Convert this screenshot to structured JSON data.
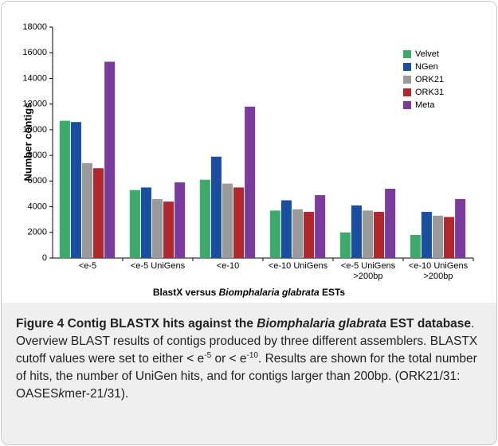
{
  "chart_data": {
    "type": "bar",
    "y_label": "Number contigs",
    "x_label": [
      {
        "text": "BlastX versus ",
        "style": "bold"
      },
      {
        "text": "Biomphalaria glabrata",
        "style": "bold-italic"
      },
      {
        "text": " ESTs",
        "style": "bold"
      }
    ],
    "categories": [
      "<e-5",
      "<e-5 UniGens",
      "<e-10",
      "<e-10 UniGens",
      "<e-5 UniGens >200bp",
      "<e-10 UniGens >200bp"
    ],
    "series": [
      {
        "name": "Velvet",
        "color": "#3daa6b",
        "values": [
          10700,
          5300,
          6100,
          3700,
          2000,
          1800
        ]
      },
      {
        "name": "NGen",
        "color": "#1a4ea0",
        "values": [
          10600,
          5500,
          7900,
          4500,
          4100,
          3600
        ]
      },
      {
        "name": "ORK21",
        "color": "#9a9a9a",
        "values": [
          7400,
          4600,
          5800,
          3800,
          3700,
          3300
        ]
      },
      {
        "name": "ORK31",
        "color": "#b0282d",
        "values": [
          7000,
          4400,
          5500,
          3600,
          3600,
          3200
        ]
      },
      {
        "name": "Meta",
        "color": "#7a3c9c",
        "values": [
          15300,
          5900,
          11800,
          4900,
          5400,
          4600
        ]
      }
    ],
    "ylim": [
      0,
      18000
    ],
    "yticks": [
      0,
      2000,
      4000,
      6000,
      8000,
      10000,
      12000,
      14000,
      16000,
      18000
    ],
    "legend": "top-right"
  },
  "caption": [
    {
      "text": "Figure 4 Contig BLASTX hits against the ",
      "style": "bold"
    },
    {
      "text": "Biomphalaria glabrata",
      "style": "bold-italic"
    },
    {
      "text": " EST database",
      "style": "bold"
    },
    {
      "text": ". Overview BLAST results of contigs produced by three different assemblers. BLASTX cutoff values were set to either < e",
      "style": "normal"
    },
    {
      "text": "-5",
      "style": "sup"
    },
    {
      "text": " or < e",
      "style": "normal"
    },
    {
      "text": "-10",
      "style": "sup"
    },
    {
      "text": ". Results are shown for the total number of hits, the number of UniGen hits, and for contigs larger than 200bp. (ORK21/31: OASES",
      "style": "normal"
    },
    {
      "text": "k",
      "style": "italic"
    },
    {
      "text": "mer-21/31).",
      "style": "normal"
    }
  ]
}
